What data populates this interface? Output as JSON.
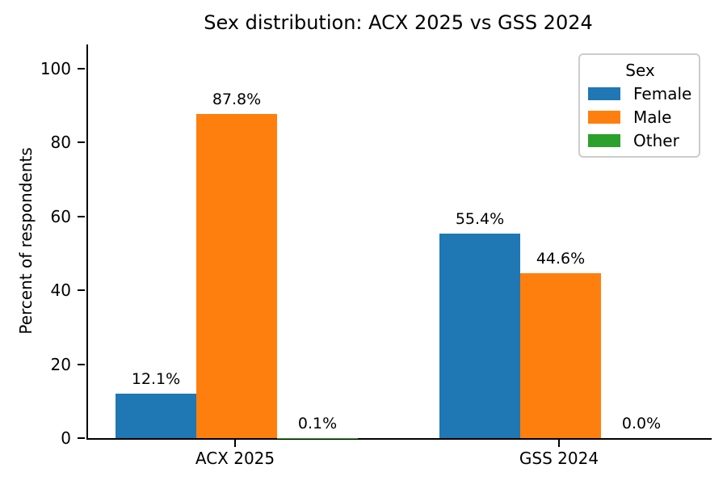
{
  "chart_data": {
    "type": "bar",
    "title": "Sex distribution: ACX 2025 vs GSS 2024",
    "xlabel": "",
    "ylabel": "Percent of respondents",
    "categories": [
      "ACX 2025",
      "GSS 2024"
    ],
    "series": [
      {
        "name": "Female",
        "color": "#1f77b4",
        "values": [
          12.1,
          55.4
        ],
        "labels": [
          "12.1%",
          "55.4%"
        ]
      },
      {
        "name": "Male",
        "color": "#ff7f0e",
        "values": [
          87.8,
          44.6
        ],
        "labels": [
          "87.8%",
          "44.6%"
        ]
      },
      {
        "name": "Other",
        "color": "#2ca02c",
        "values": [
          0.1,
          0.0
        ],
        "labels": [
          "0.1%",
          "0.0%"
        ]
      }
    ],
    "yticks": [
      "0",
      "20",
      "40",
      "60",
      "80",
      "100"
    ],
    "ytick_values": [
      0,
      20,
      40,
      60,
      80,
      100
    ],
    "ylim": [
      0,
      106.5
    ],
    "grid": false,
    "legend_title": "Sex",
    "legend_position": "upper right",
    "spine_color": "#000000",
    "background_color": "#ffffff"
  }
}
